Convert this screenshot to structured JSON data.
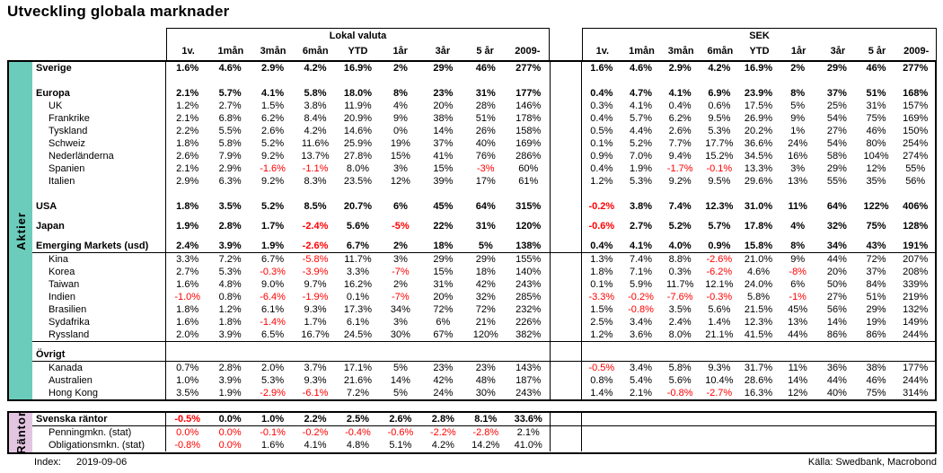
{
  "title": "Utveckling globala marknader",
  "colors": {
    "aktier_sidebar": "#6CCCBB",
    "rantor_sidebar": "#E2C5E0",
    "negative_value": "#FF0000"
  },
  "header": {
    "group1": "Lokal valuta",
    "group2": "SEK",
    "columns": [
      "1v.",
      "1mån",
      "3mån",
      "6mån",
      "YTD",
      "1år",
      "3år",
      "5 år",
      "2009-"
    ]
  },
  "table": {
    "aktier_side_label": "Aktier",
    "rantor_side_label": "Räntor",
    "aktier_rows": [
      {
        "label": "Sverige",
        "bold": true,
        "lokal": [
          "1.6%",
          "4.6%",
          "2.9%",
          "4.2%",
          "16.9%",
          "2%",
          "29%",
          "46%",
          "277%"
        ],
        "sek": [
          "1.6%",
          "4.6%",
          "2.9%",
          "4.2%",
          "16.9%",
          "2%",
          "29%",
          "46%",
          "277%"
        ]
      },
      {
        "spacer": 14
      },
      {
        "label": "Europa",
        "bold": true,
        "lokal": [
          "2.1%",
          "5.7%",
          "4.1%",
          "5.8%",
          "18.0%",
          "8%",
          "23%",
          "31%",
          "177%"
        ],
        "sek": [
          "0.4%",
          "4.7%",
          "4.1%",
          "6.9%",
          "23.9%",
          "8%",
          "37%",
          "51%",
          "168%"
        ]
      },
      {
        "label": "UK",
        "indent": true,
        "lokal": [
          "1.2%",
          "2.7%",
          "1.5%",
          "3.8%",
          "11.9%",
          "4%",
          "20%",
          "28%",
          "146%"
        ],
        "sek": [
          "0.3%",
          "4.1%",
          "0.4%",
          "0.6%",
          "17.5%",
          "5%",
          "25%",
          "31%",
          "157%"
        ]
      },
      {
        "label": "Frankrike",
        "indent": true,
        "lokal": [
          "2.1%",
          "6.8%",
          "6.2%",
          "8.4%",
          "20.9%",
          "9%",
          "38%",
          "51%",
          "178%"
        ],
        "sek": [
          "0.4%",
          "5.7%",
          "6.2%",
          "9.5%",
          "26.9%",
          "9%",
          "54%",
          "75%",
          "169%"
        ]
      },
      {
        "label": "Tyskland",
        "indent": true,
        "lokal": [
          "2.2%",
          "5.5%",
          "2.6%",
          "4.2%",
          "14.6%",
          "0%",
          "14%",
          "26%",
          "158%"
        ],
        "sek": [
          "0.5%",
          "4.4%",
          "2.6%",
          "5.3%",
          "20.2%",
          "1%",
          "27%",
          "46%",
          "150%"
        ]
      },
      {
        "label": "Schweiz",
        "indent": true,
        "lokal": [
          "1.8%",
          "5.8%",
          "5.2%",
          "11.6%",
          "25.9%",
          "19%",
          "37%",
          "40%",
          "169%"
        ],
        "sek": [
          "0.1%",
          "5.2%",
          "7.7%",
          "17.7%",
          "36.6%",
          "24%",
          "54%",
          "80%",
          "254%"
        ]
      },
      {
        "label": "Nederländerna",
        "indent": true,
        "lokal": [
          "2.6%",
          "7.9%",
          "9.2%",
          "13.7%",
          "27.8%",
          "15%",
          "41%",
          "76%",
          "286%"
        ],
        "sek": [
          "0.9%",
          "7.0%",
          "9.4%",
          "15.2%",
          "34.5%",
          "16%",
          "58%",
          "104%",
          "274%"
        ]
      },
      {
        "label": "Spanien",
        "indent": true,
        "lokal": [
          "2.1%",
          "2.9%",
          "-1.6%",
          "-1.1%",
          "8.0%",
          "3%",
          "15%",
          "-3%",
          "60%"
        ],
        "sek": [
          "0.4%",
          "1.9%",
          "-1.7%",
          "-0.1%",
          "13.3%",
          "3%",
          "29%",
          "12%",
          "55%"
        ]
      },
      {
        "label": "Italien",
        "indent": true,
        "lokal": [
          "2.9%",
          "6.3%",
          "9.2%",
          "8.3%",
          "23.5%",
          "12%",
          "39%",
          "17%",
          "61%"
        ],
        "sek": [
          "1.2%",
          "5.3%",
          "9.2%",
          "9.5%",
          "29.6%",
          "13%",
          "55%",
          "35%",
          "56%"
        ]
      },
      {
        "spacer": 14
      },
      {
        "label": "USA",
        "bold": true,
        "lokal": [
          "1.8%",
          "3.5%",
          "5.2%",
          "8.5%",
          "20.7%",
          "6%",
          "45%",
          "64%",
          "315%"
        ],
        "sek": [
          "-0.2%",
          "3.8%",
          "7.4%",
          "12.3%",
          "31.0%",
          "11%",
          "64%",
          "122%",
          "406%"
        ]
      },
      {
        "spacer": 8
      },
      {
        "label": "Japan",
        "bold": true,
        "lokal": [
          "1.9%",
          "2.8%",
          "1.7%",
          "-2.4%",
          "5.6%",
          "-5%",
          "22%",
          "31%",
          "120%"
        ],
        "sek": [
          "-0.6%",
          "2.7%",
          "5.2%",
          "5.7%",
          "17.8%",
          "4%",
          "32%",
          "75%",
          "128%"
        ]
      },
      {
        "spacer": 8
      },
      {
        "label": "Emerging Markets (usd)",
        "bold": true,
        "divider": true,
        "lokal": [
          "2.4%",
          "3.9%",
          "1.9%",
          "-2.6%",
          "6.7%",
          "2%",
          "18%",
          "5%",
          "138%"
        ],
        "sek": [
          "0.4%",
          "4.1%",
          "4.0%",
          "0.9%",
          "15.8%",
          "8%",
          "34%",
          "43%",
          "191%"
        ]
      },
      {
        "label": "Kina",
        "indent": true,
        "lokal": [
          "3.3%",
          "7.2%",
          "6.7%",
          "-5.8%",
          "11.7%",
          "3%",
          "29%",
          "29%",
          "155%"
        ],
        "sek": [
          "1.3%",
          "7.4%",
          "8.8%",
          "-2.6%",
          "21.0%",
          "9%",
          "44%",
          "72%",
          "207%"
        ]
      },
      {
        "label": "Korea",
        "indent": true,
        "lokal": [
          "2.7%",
          "5.3%",
          "-0.3%",
          "-3.9%",
          "3.3%",
          "-7%",
          "15%",
          "18%",
          "140%"
        ],
        "sek": [
          "1.8%",
          "7.1%",
          "0.3%",
          "-6.2%",
          "4.6%",
          "-8%",
          "20%",
          "37%",
          "208%"
        ]
      },
      {
        "label": "Taiwan",
        "indent": true,
        "lokal": [
          "1.6%",
          "4.8%",
          "9.0%",
          "9.7%",
          "16.2%",
          "2%",
          "31%",
          "42%",
          "243%"
        ],
        "sek": [
          "0.1%",
          "5.9%",
          "11.7%",
          "12.1%",
          "24.0%",
          "6%",
          "50%",
          "84%",
          "339%"
        ]
      },
      {
        "label": "Indien",
        "indent": true,
        "lokal": [
          "-1.0%",
          "0.8%",
          "-6.4%",
          "-1.9%",
          "0.1%",
          "-7%",
          "20%",
          "32%",
          "285%"
        ],
        "sek": [
          "-3.3%",
          "-0.2%",
          "-7.6%",
          "-0.3%",
          "5.8%",
          "-1%",
          "27%",
          "51%",
          "219%"
        ]
      },
      {
        "label": "Brasilien",
        "indent": true,
        "lokal": [
          "1.8%",
          "1.2%",
          "6.1%",
          "9.3%",
          "17.3%",
          "34%",
          "72%",
          "72%",
          "232%"
        ],
        "sek": [
          "1.5%",
          "-0.8%",
          "3.5%",
          "5.6%",
          "21.5%",
          "45%",
          "56%",
          "29%",
          "132%"
        ]
      },
      {
        "label": "Sydafrika",
        "indent": true,
        "lokal": [
          "1.6%",
          "1.8%",
          "-1.4%",
          "1.7%",
          "6.1%",
          "3%",
          "6%",
          "21%",
          "226%"
        ],
        "sek": [
          "2.5%",
          "3.4%",
          "2.4%",
          "1.4%",
          "12.3%",
          "13%",
          "14%",
          "19%",
          "149%"
        ]
      },
      {
        "label": "Ryssland",
        "indent": true,
        "divider": true,
        "lokal": [
          "2.0%",
          "3.9%",
          "6.5%",
          "16.7%",
          "24.5%",
          "30%",
          "67%",
          "120%",
          "382%"
        ],
        "sek": [
          "1.2%",
          "3.6%",
          "8.0%",
          "21.1%",
          "41.5%",
          "44%",
          "86%",
          "86%",
          "244%"
        ]
      },
      {
        "spacer": 7
      },
      {
        "label": "Övrigt",
        "bold": true,
        "divider": true,
        "lokal": [],
        "sek": []
      },
      {
        "label": "Kanada",
        "indent": true,
        "lokal": [
          "0.7%",
          "2.8%",
          "2.0%",
          "3.7%",
          "17.1%",
          "5%",
          "23%",
          "23%",
          "143%"
        ],
        "sek": [
          "-0.5%",
          "3.4%",
          "5.8%",
          "9.3%",
          "31.7%",
          "11%",
          "36%",
          "38%",
          "177%"
        ]
      },
      {
        "label": "Australien",
        "indent": true,
        "lokal": [
          "1.0%",
          "3.9%",
          "5.3%",
          "9.3%",
          "21.6%",
          "14%",
          "42%",
          "48%",
          "187%"
        ],
        "sek": [
          "0.8%",
          "5.4%",
          "5.6%",
          "10.4%",
          "28.6%",
          "14%",
          "44%",
          "46%",
          "244%"
        ]
      },
      {
        "label": "Hong Kong",
        "indent": true,
        "lokal": [
          "3.5%",
          "1.9%",
          "-2.9%",
          "-6.1%",
          "7.2%",
          "5%",
          "24%",
          "30%",
          "243%"
        ],
        "sek": [
          "1.4%",
          "2.1%",
          "-0.8%",
          "-2.7%",
          "16.3%",
          "12%",
          "40%",
          "75%",
          "314%"
        ]
      }
    ],
    "rantor_rows": [
      {
        "label": "Svenska räntor",
        "bold": true,
        "divider": true,
        "lokal": [
          "-0.5%",
          "0.0%",
          "1.0%",
          "2.2%",
          "2.5%",
          "2.6%",
          "2.8%",
          "8.1%",
          "33.6%"
        ],
        "sek": []
      },
      {
        "label": "Penningmkn. (stat)",
        "indent": true,
        "red_lokal": [
          0,
          1
        ],
        "lokal": [
          "0.0%",
          "0.0%",
          "-0.1%",
          "-0.2%",
          "-0.4%",
          "-0.6%",
          "-2.2%",
          "-2.8%",
          "2.1%"
        ],
        "sek": []
      },
      {
        "label": "Obligationsmkn. (stat)",
        "indent": true,
        "red_lokal": [
          1
        ],
        "lokal": [
          "-0.8%",
          "0.0%",
          "1.6%",
          "4.1%",
          "4.8%",
          "5.1%",
          "4.2%",
          "14.2%",
          "41.0%"
        ],
        "sek": []
      }
    ]
  },
  "footer": {
    "index_label": "Index:",
    "index_value": "2019-09-06",
    "source": "Källa: Swedbank, Macrobond"
  }
}
